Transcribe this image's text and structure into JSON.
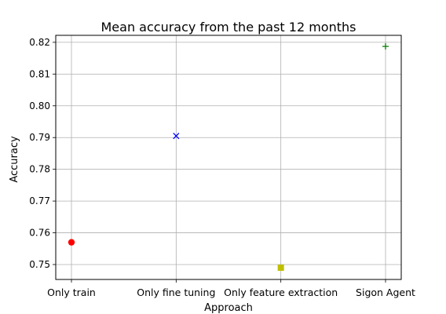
{
  "chart_data": {
    "type": "scatter",
    "title": "Mean accuracy from the past 12 months",
    "xlabel": "Approach",
    "ylabel": "Accuracy",
    "categories": [
      "Only train",
      "Only fine tuning",
      "Only feature extraction",
      "Sigon Agent"
    ],
    "points": [
      {
        "category": "Only train",
        "value": 0.757,
        "marker": "circle",
        "color": "#ff0000"
      },
      {
        "category": "Only fine tuning",
        "value": 0.7905,
        "marker": "x",
        "color": "#0000ff"
      },
      {
        "category": "Only feature extraction",
        "value": 0.749,
        "marker": "square",
        "color": "#bfbf00"
      },
      {
        "category": "Sigon Agent",
        "value": 0.8187,
        "marker": "plus",
        "color": "#008000"
      }
    ],
    "ylim": [
      0.7453,
      0.8222
    ],
    "yticks": [
      0.75,
      0.76,
      0.77,
      0.78,
      0.79,
      0.8,
      0.81,
      0.82
    ],
    "ytick_labels": [
      "0.75",
      "0.76",
      "0.77",
      "0.78",
      "0.79",
      "0.80",
      "0.81",
      "0.82"
    ],
    "grid": true
  }
}
